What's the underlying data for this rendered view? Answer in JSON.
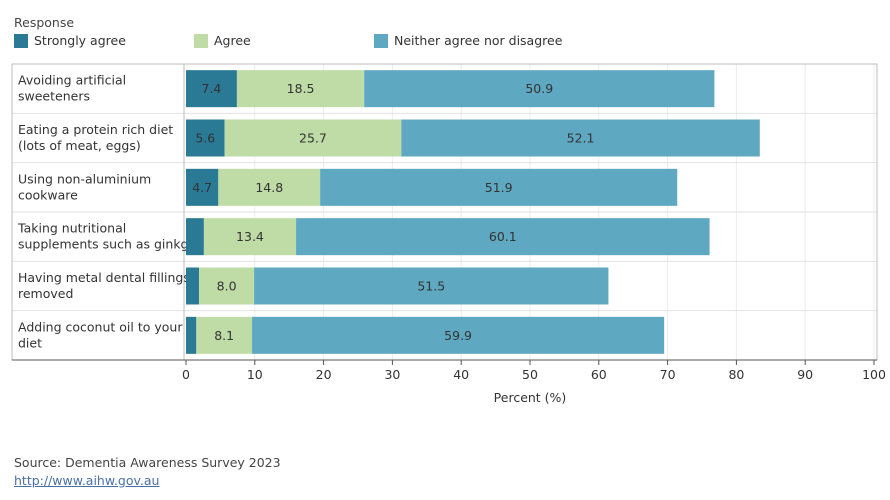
{
  "legend": {
    "title": "Response",
    "items": [
      {
        "label": "Strongly agree",
        "color": "#2a7a95"
      },
      {
        "label": "Agree",
        "color": "#bfdca7"
      },
      {
        "label": "Neither agree nor disagree",
        "color": "#5fa8c1"
      }
    ]
  },
  "chart_data": {
    "type": "bar",
    "orientation": "horizontal",
    "stacked": true,
    "categories": [
      [
        "Avoiding artificial",
        "sweeteners"
      ],
      [
        "Eating a protein rich diet",
        "(lots of meat, eggs)"
      ],
      [
        "Using non-aluminium",
        "cookware"
      ],
      [
        "Taking nutritional",
        "supplements such as ginkgo"
      ],
      [
        "Having metal dental fillings",
        "removed"
      ],
      [
        "Adding coconut oil to your",
        "diet"
      ]
    ],
    "series": [
      {
        "name": "Strongly agree",
        "color": "#2a7a95",
        "values": [
          7.4,
          5.6,
          4.7,
          2.6,
          1.9,
          1.5
        ],
        "labels": [
          "7.4",
          "5.6",
          "4.7",
          "",
          "",
          ""
        ]
      },
      {
        "name": "Agree",
        "color": "#bfdca7",
        "values": [
          18.5,
          25.7,
          14.8,
          13.4,
          8.0,
          8.1
        ],
        "labels": [
          "18.5",
          "25.7",
          "14.8",
          "13.4",
          "8.0",
          "8.1"
        ]
      },
      {
        "name": "Neither agree nor disagree",
        "color": "#5fa8c1",
        "values": [
          50.9,
          52.1,
          51.9,
          60.1,
          51.5,
          59.9
        ],
        "labels": [
          "50.9",
          "52.1",
          "51.9",
          "60.1",
          "51.5",
          "59.9"
        ]
      }
    ],
    "xlabel": "Percent (%)",
    "xlim": [
      0,
      100
    ],
    "xticks": [
      0,
      10,
      20,
      30,
      40,
      50,
      60,
      70,
      80,
      90,
      100
    ],
    "grid": true,
    "legend_position": "top-left"
  },
  "footer": {
    "source": "Source: Dementia Awareness Survey 2023",
    "link": "http://www.aihw.gov.au"
  }
}
